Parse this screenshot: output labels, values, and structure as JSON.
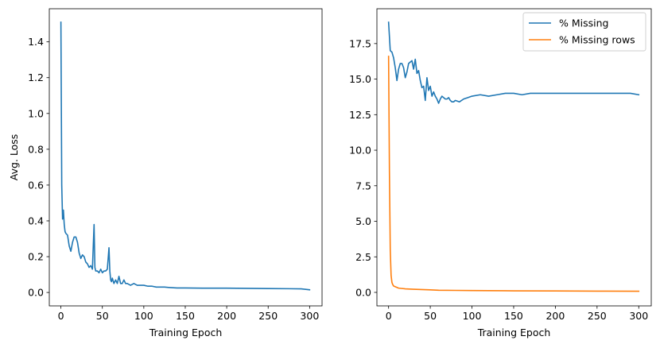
{
  "chart_data": [
    {
      "type": "line",
      "xlabel": "Training Epoch",
      "ylabel": "Avg. Loss",
      "xlim": [
        -14,
        315
      ],
      "ylim": [
        -0.075,
        1.585
      ],
      "xticks": [
        0,
        50,
        100,
        150,
        200,
        250,
        300
      ],
      "xtick_labels": [
        "0",
        "50",
        "100",
        "150",
        "200",
        "250",
        "300"
      ],
      "yticks": [
        0.0,
        0.2,
        0.4,
        0.6,
        0.8,
        1.0,
        1.2,
        1.4
      ],
      "ytick_labels": [
        "0.0",
        "0.2",
        "0.4",
        "0.6",
        "0.8",
        "1.0",
        "1.2",
        "1.4"
      ],
      "grid": false,
      "series": [
        {
          "color": "#1f77b4",
          "x": [
            0,
            1,
            2,
            3,
            4,
            5,
            6,
            8,
            10,
            12,
            14,
            16,
            18,
            20,
            22,
            24,
            26,
            28,
            30,
            32,
            34,
            36,
            38,
            40,
            41,
            42,
            44,
            46,
            48,
            50,
            52,
            54,
            56,
            58,
            59,
            60,
            61,
            62,
            64,
            66,
            68,
            70,
            72,
            74,
            76,
            78,
            80,
            84,
            88,
            92,
            96,
            100,
            105,
            110,
            115,
            120,
            125,
            130,
            140,
            150,
            175,
            200,
            225,
            250,
            275,
            290,
            300
          ],
          "y": [
            1.51,
            0.6,
            0.41,
            0.46,
            0.38,
            0.34,
            0.33,
            0.32,
            0.26,
            0.23,
            0.28,
            0.31,
            0.31,
            0.28,
            0.22,
            0.19,
            0.21,
            0.2,
            0.17,
            0.16,
            0.14,
            0.15,
            0.13,
            0.38,
            0.14,
            0.12,
            0.12,
            0.11,
            0.13,
            0.11,
            0.12,
            0.12,
            0.13,
            0.25,
            0.12,
            0.07,
            0.06,
            0.08,
            0.05,
            0.07,
            0.05,
            0.09,
            0.05,
            0.05,
            0.07,
            0.05,
            0.05,
            0.04,
            0.05,
            0.04,
            0.04,
            0.04,
            0.035,
            0.035,
            0.03,
            0.03,
            0.03,
            0.028,
            0.025,
            0.025,
            0.024,
            0.024,
            0.023,
            0.022,
            0.021,
            0.02,
            0.015
          ]
        }
      ]
    },
    {
      "type": "line",
      "xlabel": "Training Epoch",
      "ylabel": "",
      "xlim": [
        -14,
        315
      ],
      "ylim": [
        -0.95,
        19.95
      ],
      "xticks": [
        0,
        50,
        100,
        150,
        200,
        250,
        300
      ],
      "xtick_labels": [
        "0",
        "50",
        "100",
        "150",
        "200",
        "250",
        "300"
      ],
      "yticks": [
        0.0,
        2.5,
        5.0,
        7.5,
        10.0,
        12.5,
        15.0,
        17.5
      ],
      "ytick_labels": [
        "0.0",
        "2.5",
        "5.0",
        "7.5",
        "10.0",
        "12.5",
        "15.0",
        "17.5"
      ],
      "grid": false,
      "legend": "top-right",
      "series": [
        {
          "name": "% Missing",
          "color": "#1f77b4",
          "x": [
            0,
            2,
            4,
            6,
            8,
            10,
            12,
            14,
            16,
            18,
            20,
            22,
            24,
            26,
            28,
            30,
            32,
            34,
            36,
            38,
            40,
            42,
            44,
            46,
            48,
            50,
            52,
            54,
            56,
            58,
            60,
            62,
            64,
            66,
            68,
            70,
            72,
            74,
            76,
            78,
            80,
            85,
            90,
            95,
            100,
            110,
            120,
            130,
            140,
            150,
            160,
            170,
            180,
            200,
            225,
            250,
            275,
            290,
            300
          ],
          "y": [
            19.0,
            17.0,
            16.9,
            16.5,
            15.8,
            14.9,
            15.7,
            16.1,
            16.1,
            15.8,
            15.1,
            15.5,
            16.1,
            16.2,
            16.3,
            15.7,
            16.4,
            15.4,
            15.6,
            14.9,
            14.4,
            14.5,
            13.5,
            15.1,
            14.2,
            14.5,
            13.8,
            14.1,
            13.8,
            13.6,
            13.3,
            13.6,
            13.8,
            13.7,
            13.6,
            13.6,
            13.7,
            13.5,
            13.4,
            13.4,
            13.5,
            13.4,
            13.6,
            13.7,
            13.8,
            13.9,
            13.8,
            13.9,
            14.0,
            14.0,
            13.9,
            14.0,
            14.0,
            14.0,
            14.0,
            14.0,
            14.0,
            14.0,
            13.9
          ]
        },
        {
          "name": "% Missing rows",
          "color": "#ff7f0e",
          "x": [
            0,
            1,
            2,
            3,
            4,
            5,
            6,
            8,
            10,
            12,
            15,
            20,
            30,
            40,
            50,
            60,
            80,
            100,
            150,
            200,
            250,
            300
          ],
          "y": [
            16.6,
            8.5,
            3.0,
            1.2,
            0.7,
            0.55,
            0.45,
            0.4,
            0.35,
            0.3,
            0.28,
            0.25,
            0.22,
            0.2,
            0.18,
            0.15,
            0.14,
            0.13,
            0.11,
            0.1,
            0.09,
            0.08
          ]
        }
      ]
    }
  ]
}
